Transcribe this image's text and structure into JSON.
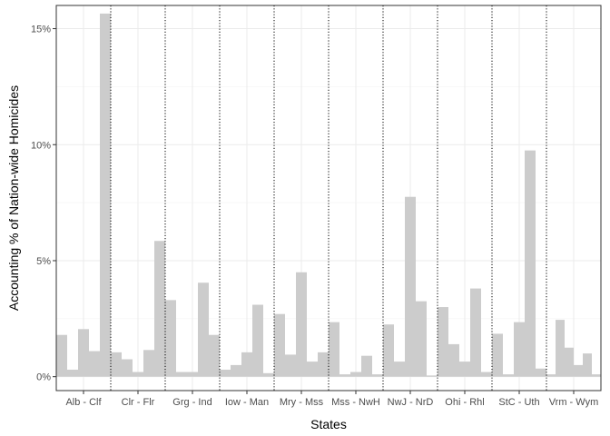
{
  "chart_data": {
    "type": "bar",
    "xlabel": "States",
    "ylabel": "Accounting % of Nation-wide Homicides",
    "ylim": [
      -0.6,
      16.0
    ],
    "y_ticks": [
      0,
      5,
      10,
      15
    ],
    "y_tick_labels": [
      "0%",
      "5%",
      "10%",
      "15%"
    ],
    "grid": true,
    "bar_color": "#cccccc",
    "groups": [
      {
        "label": "Alb - Clf",
        "values": [
          1.8,
          0.3,
          2.05,
          1.1,
          15.65
        ]
      },
      {
        "label": "Clr - Flr",
        "values": [
          1.05,
          0.75,
          0.2,
          1.15,
          5.85
        ]
      },
      {
        "label": "Grg - Ind",
        "values": [
          3.3,
          0.2,
          0.2,
          4.05,
          1.8
        ]
      },
      {
        "label": "Iow - Man",
        "values": [
          0.3,
          0.5,
          1.05,
          3.1,
          0.15
        ]
      },
      {
        "label": "Mry - Mss",
        "values": [
          2.7,
          0.95,
          4.5,
          0.65,
          1.05
        ]
      },
      {
        "label": "Mss - NwH",
        "values": [
          2.35,
          0.1,
          0.2,
          0.9,
          0.1
        ]
      },
      {
        "label": "NwJ - NrD",
        "values": [
          2.25,
          0.65,
          7.75,
          3.25,
          0.05
        ]
      },
      {
        "label": "Ohi - Rhl",
        "values": [
          3.0,
          1.4,
          0.65,
          3.8,
          0.2
        ]
      },
      {
        "label": "StC - Uth",
        "values": [
          1.85,
          0.1,
          2.35,
          9.75,
          0.35
        ]
      },
      {
        "label": "Vrm - Wym",
        "values": [
          0.1,
          2.45,
          1.25,
          0.5,
          1.0,
          0.1
        ]
      }
    ]
  }
}
